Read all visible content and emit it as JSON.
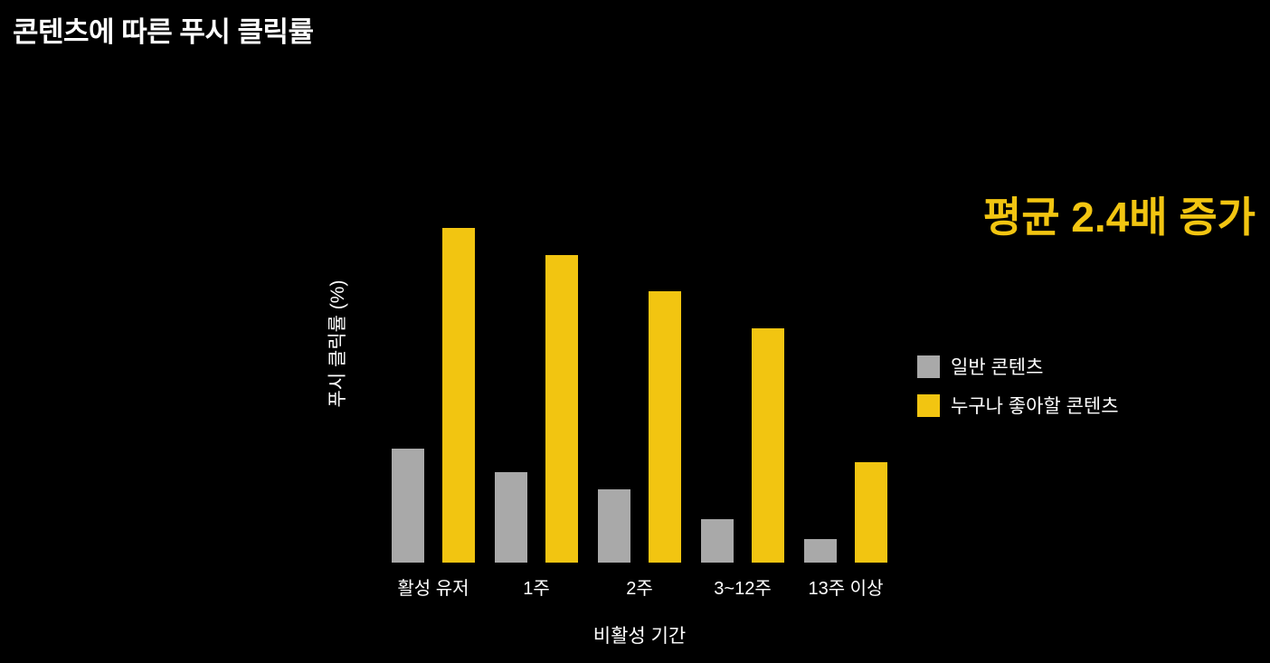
{
  "page": {
    "title": "콘텐츠에 따른 푸시 클릭률",
    "headline": "평균 2.4배 증가"
  },
  "chart_data": {
    "type": "bar",
    "title": "콘텐츠에 따른 푸시 클릭률",
    "xlabel": "비활성 기간",
    "ylabel": "푸시 클릭률 (%)",
    "categories": [
      "활성 유저",
      "1주",
      "2주",
      "3~12주",
      "13주 이상"
    ],
    "series": [
      {
        "name": "일반 콘텐츠",
        "color": "#A9A9A9",
        "values": [
          34,
          27,
          22,
          13,
          7
        ]
      },
      {
        "name": "누구나 좋아할 콘텐츠",
        "color": "#F2C511",
        "values": [
          100,
          92,
          81,
          70,
          30
        ]
      }
    ],
    "ylim": [
      0,
      100
    ],
    "grid": false,
    "legend_position": "right",
    "annotation": "평균 2.4배 증가"
  },
  "colors": {
    "background": "#000000",
    "accent_yellow": "#F2C511",
    "bar_gray": "#A9A9A9",
    "text": "#FFFFFF"
  }
}
